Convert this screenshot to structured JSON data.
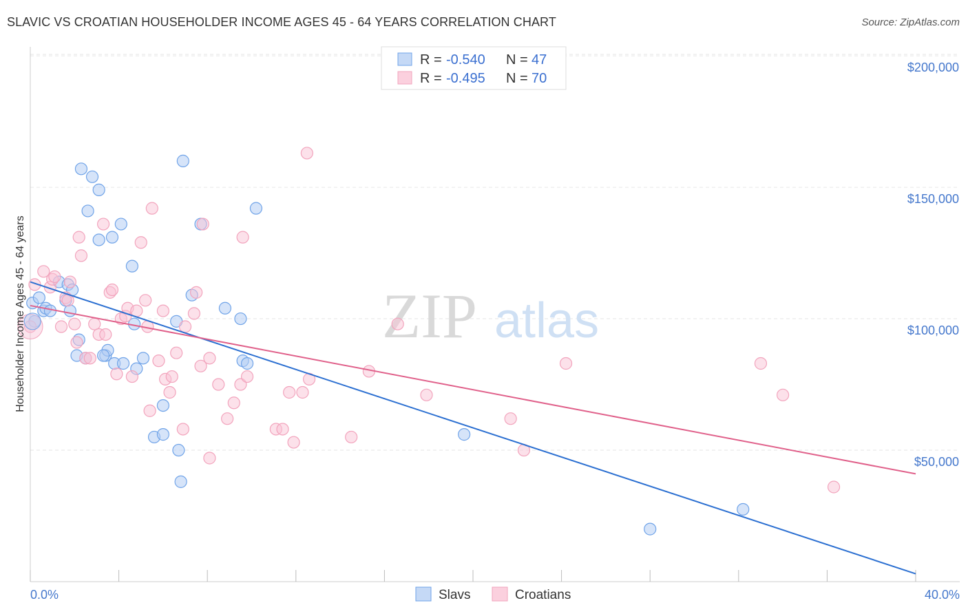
{
  "title": "SLAVIC VS CROATIAN HOUSEHOLDER INCOME AGES 45 - 64 YEARS CORRELATION CHART",
  "source": "Source: ZipAtlas.com",
  "watermark": {
    "zip": "ZIP",
    "atlas": "atlas"
  },
  "legend": {
    "r_label": "R =",
    "n_label": "N =",
    "entries": [
      {
        "r": "-0.540",
        "n": "47"
      },
      {
        "r": "-0.495",
        "n": "70"
      }
    ]
  },
  "chart_data": {
    "type": "scatter",
    "xlabel": "",
    "ylabel": "Householder Income Ages 45 - 64 years",
    "xlim": [
      0,
      40
    ],
    "ylim": [
      0,
      205000
    ],
    "x_tick_labels": {
      "min": "0.0%",
      "max": "40.0%"
    },
    "y_ticks": [
      {
        "value": 50000,
        "label": "$50,000"
      },
      {
        "value": 100000,
        "label": "$100,000"
      },
      {
        "value": 150000,
        "label": "$150,000"
      },
      {
        "value": 200000,
        "label": "$200,000"
      }
    ],
    "grid": true,
    "legend_position": "top-center",
    "series": [
      {
        "name": "Slavs",
        "color": "#6fa3e8",
        "line_color": "#2b6fd1",
        "trend": {
          "x": [
            0,
            40
          ],
          "y": [
            114000,
            3000
          ]
        },
        "points": [
          [
            0.1,
            106000
          ],
          [
            0.4,
            108000
          ],
          [
            0.6,
            103000
          ],
          [
            0.7,
            104000
          ],
          [
            0.9,
            103000
          ],
          [
            1.3,
            114000
          ],
          [
            1.6,
            107000
          ],
          [
            1.7,
            113000
          ],
          [
            1.9,
            111000
          ],
          [
            2.1,
            86000
          ],
          [
            2.2,
            92000
          ],
          [
            2.3,
            157000
          ],
          [
            2.5,
            85000
          ],
          [
            2.6,
            141000
          ],
          [
            2.8,
            154000
          ],
          [
            3.1,
            149000
          ],
          [
            3.1,
            130000
          ],
          [
            3.4,
            86000
          ],
          [
            3.5,
            88000
          ],
          [
            3.7,
            131000
          ],
          [
            3.8,
            83000
          ],
          [
            4.1,
            136000
          ],
          [
            4.2,
            83000
          ],
          [
            4.6,
            120000
          ],
          [
            4.7,
            98000
          ],
          [
            4.8,
            81000
          ],
          [
            5.1,
            85000
          ],
          [
            5.6,
            55000
          ],
          [
            6.0,
            56000
          ],
          [
            6.0,
            67000
          ],
          [
            6.6,
            99000
          ],
          [
            6.7,
            50000
          ],
          [
            6.8,
            38000
          ],
          [
            6.9,
            160000
          ],
          [
            7.3,
            109000
          ],
          [
            7.7,
            136000
          ],
          [
            8.8,
            104000
          ],
          [
            9.5,
            100000
          ],
          [
            9.6,
            84000
          ],
          [
            9.8,
            83000
          ],
          [
            10.2,
            142000
          ],
          [
            19.6,
            56000
          ],
          [
            28.0,
            20000
          ],
          [
            32.2,
            27500
          ],
          [
            0.2,
            99000
          ],
          [
            1.8,
            103000
          ],
          [
            3.3,
            86000
          ]
        ]
      },
      {
        "name": "Croatians",
        "color": "#f2a3bc",
        "line_color": "#e0608a",
        "trend": {
          "x": [
            0,
            40
          ],
          "y": [
            105000,
            41000
          ]
        },
        "points": [
          [
            0.0,
            97000
          ],
          [
            0.2,
            113000
          ],
          [
            0.6,
            118000
          ],
          [
            0.9,
            112000
          ],
          [
            1.0,
            115000
          ],
          [
            1.1,
            116000
          ],
          [
            1.4,
            97000
          ],
          [
            1.6,
            108000
          ],
          [
            1.7,
            107000
          ],
          [
            1.8,
            114000
          ],
          [
            2.0,
            98000
          ],
          [
            2.1,
            91000
          ],
          [
            2.2,
            131000
          ],
          [
            2.3,
            124000
          ],
          [
            2.5,
            85000
          ],
          [
            2.7,
            85000
          ],
          [
            2.9,
            98000
          ],
          [
            3.1,
            94000
          ],
          [
            3.3,
            136000
          ],
          [
            3.4,
            94000
          ],
          [
            3.6,
            110000
          ],
          [
            3.7,
            111000
          ],
          [
            3.9,
            79000
          ],
          [
            4.1,
            100000
          ],
          [
            4.3,
            101000
          ],
          [
            4.4,
            104000
          ],
          [
            4.6,
            78000
          ],
          [
            4.8,
            103000
          ],
          [
            5.0,
            129000
          ],
          [
            5.2,
            107000
          ],
          [
            5.3,
            97000
          ],
          [
            5.4,
            65000
          ],
          [
            5.5,
            142000
          ],
          [
            5.8,
            84000
          ],
          [
            6.0,
            103000
          ],
          [
            6.1,
            77000
          ],
          [
            6.3,
            72000
          ],
          [
            6.4,
            78000
          ],
          [
            6.6,
            87000
          ],
          [
            6.9,
            58000
          ],
          [
            7.0,
            97000
          ],
          [
            7.4,
            102000
          ],
          [
            7.5,
            110000
          ],
          [
            7.7,
            82000
          ],
          [
            7.8,
            136000
          ],
          [
            8.1,
            85000
          ],
          [
            8.1,
            47000
          ],
          [
            8.5,
            75000
          ],
          [
            8.9,
            62000
          ],
          [
            9.2,
            68000
          ],
          [
            9.5,
            75000
          ],
          [
            9.6,
            131000
          ],
          [
            9.8,
            78000
          ],
          [
            11.1,
            58000
          ],
          [
            11.4,
            58000
          ],
          [
            11.9,
            53000
          ],
          [
            12.3,
            72000
          ],
          [
            12.5,
            163000
          ],
          [
            12.6,
            77000
          ],
          [
            14.5,
            55000
          ],
          [
            15.3,
            80000
          ],
          [
            16.6,
            98000
          ],
          [
            17.9,
            71000
          ],
          [
            21.7,
            62000
          ],
          [
            22.3,
            50000
          ],
          [
            24.2,
            83000
          ],
          [
            33.0,
            83000
          ],
          [
            34.0,
            71000
          ],
          [
            36.3,
            36000
          ],
          [
            11.7,
            72000
          ]
        ]
      }
    ]
  }
}
